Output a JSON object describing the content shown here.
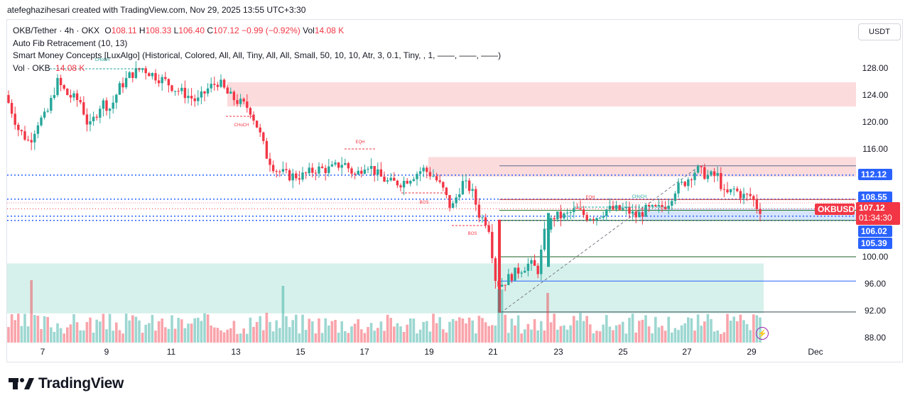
{
  "header": {
    "attribution": "atefeghazihesari created with TradingView.com, Nov 29, 2025 13:55 UTC+3:30"
  },
  "legend": {
    "symbol": "OKB/Tether · 4h · OKX",
    "open_label": "O",
    "open": "108.11",
    "high_label": "H",
    "high": "108.33",
    "low_label": "L",
    "low": "106.40",
    "close_label": "C",
    "close": "107.12",
    "change": "−0.99 (−0.92%)",
    "vol_label": "Vol",
    "vol": "14.08 K",
    "indicator1": "Auto Fib Retracement (10, 13)",
    "indicator2": "Smart Money Concepts [LuxAlgo] (Historical, Colored, All, All, Tiny, All, All, Small, 50, 10, 10, Atr, 3, 0.1, Tiny, , 1, ——, ——, ——)",
    "vol_indicator": "Vol · OKB",
    "vol_indicator_value": "14.08 K"
  },
  "currency_button": "USDT",
  "brand": "TradingView",
  "colors": {
    "up": "#26a69a",
    "down": "#f23645",
    "supply_zone": "#fbd5d7",
    "demand_zone": "#cfeee8",
    "accent": "#2962ff"
  },
  "price_tags": {
    "level_112": "112.12",
    "level_108": "108.55",
    "symbol_tag": "OKBUSDT",
    "last_price": "107.12",
    "countdown": "01:34:30",
    "level_106": "106.02",
    "level_105": "105.39"
  },
  "chart_data": {
    "type": "candlestick",
    "y_ticks": [
      "128.00",
      "124.00",
      "120.00",
      "116.00",
      "100.00",
      "96.00",
      "92.00",
      "88.00"
    ],
    "x_ticks": [
      "7",
      "9",
      "11",
      "13",
      "15",
      "17",
      "19",
      "21",
      "23",
      "25",
      "27",
      "29",
      "Dec"
    ],
    "annotations": [
      "CHoCH",
      "CHoCH",
      "EQH",
      "BOS",
      "BOS",
      "EQH",
      "CHoCH"
    ],
    "horizontal_levels": [
      112.12,
      108.55,
      106.02,
      105.39
    ],
    "zones": [
      {
        "kind": "supply",
        "from": 122.3,
        "to": 125.9
      },
      {
        "kind": "supply",
        "from": 111.9,
        "to": 114.8
      },
      {
        "kind": "demand",
        "from": 91.6,
        "to": 99.0
      },
      {
        "kind": "demand",
        "from": 105.4,
        "to": 107.2
      }
    ],
    "last_close": 107.12
  }
}
